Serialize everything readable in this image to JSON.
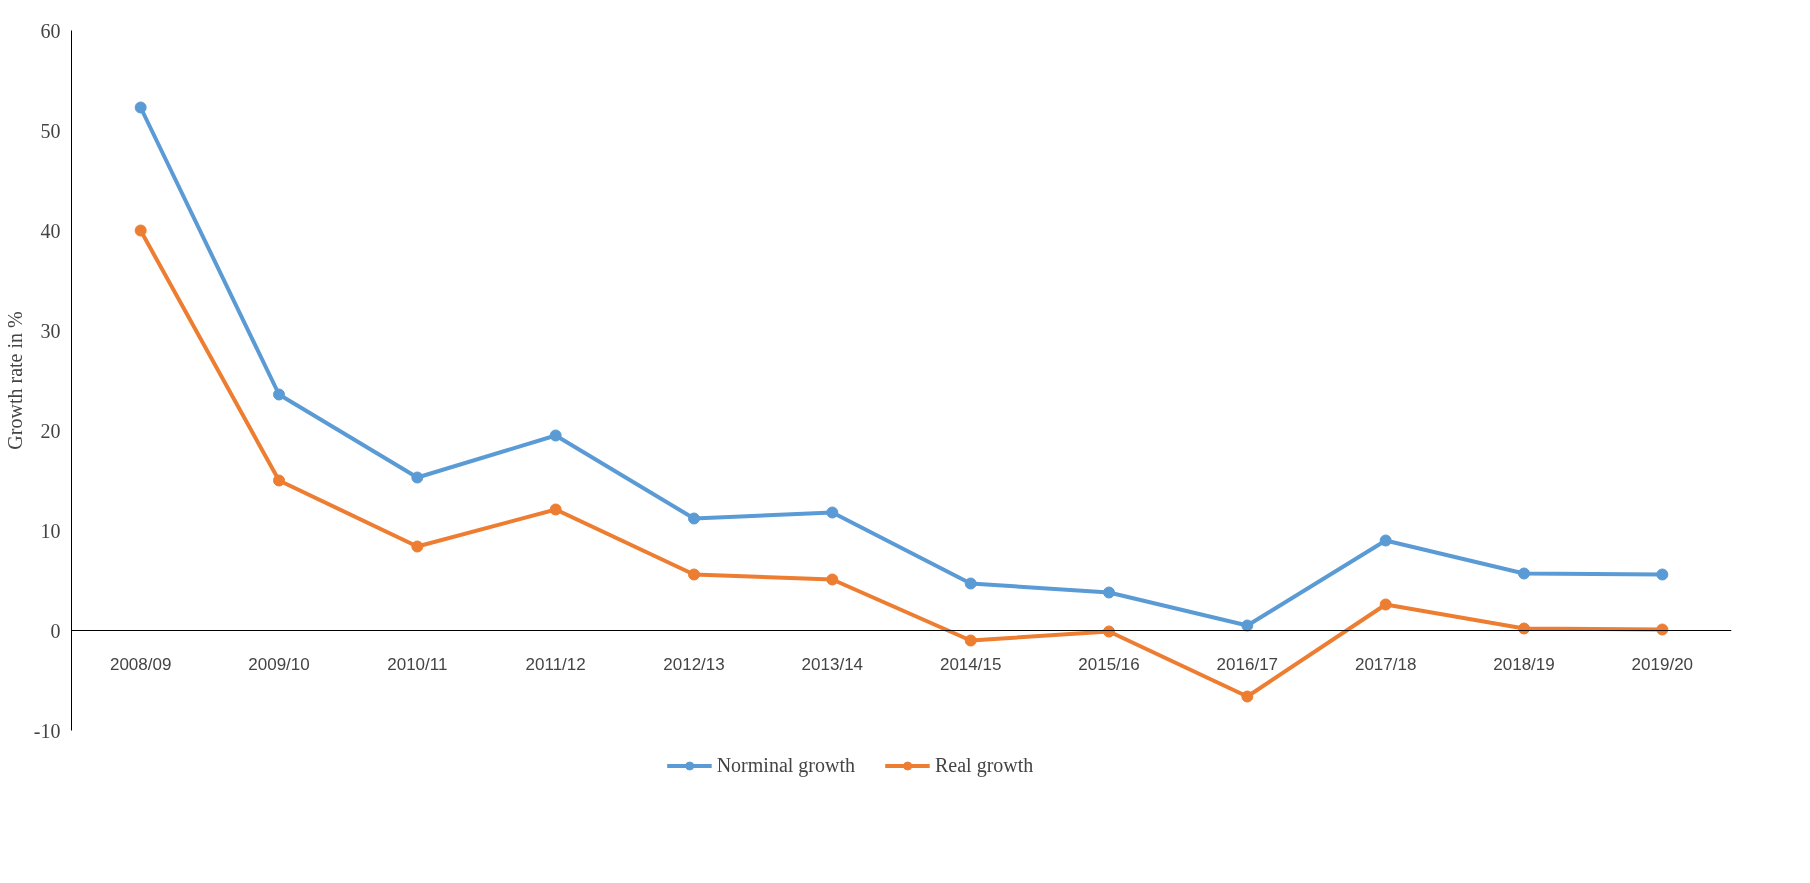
{
  "chart_data": {
    "type": "line",
    "ylabel": "Growth rate in %",
    "categories": [
      "2008/09",
      "2009/10",
      "2010/11",
      "2011/12",
      "2012/13",
      "2013/14",
      "2014/15",
      "2015/16",
      "2016/17",
      "2017/18",
      "2018/19",
      "2019/20"
    ],
    "series": [
      {
        "name": "Norminal growth",
        "color": "#5b9bd5",
        "values": [
          52.3,
          23.6,
          15.3,
          19.5,
          11.2,
          11.8,
          4.7,
          3.8,
          0.5,
          9.0,
          5.7,
          5.6
        ]
      },
      {
        "name": "Real growth",
        "color": "#ed7d31",
        "values": [
          40.0,
          15.0,
          8.4,
          12.1,
          5.6,
          5.1,
          -1.0,
          -0.1,
          -6.6,
          2.6,
          0.2,
          0.1
        ]
      }
    ],
    "ylim": [
      -10,
      60
    ],
    "yticks": [
      -10,
      0,
      10,
      20,
      30,
      40,
      50,
      60
    ],
    "grid": false,
    "legend": "bottom",
    "marker": "circle",
    "line_style": "solid"
  }
}
